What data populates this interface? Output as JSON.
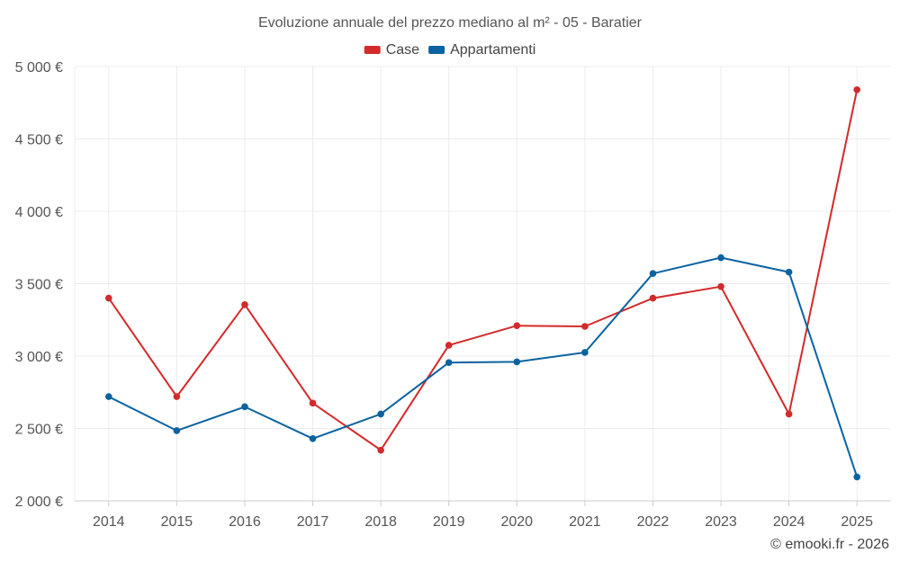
{
  "chart_data": {
    "type": "line",
    "title": "Evoluzione annuale del prezzo mediano al m² - 05 - Baratier",
    "categories": [
      "2014",
      "2015",
      "2016",
      "2017",
      "2018",
      "2019",
      "2020",
      "2021",
      "2022",
      "2023",
      "2024",
      "2025"
    ],
    "series": [
      {
        "name": "Case",
        "color": "#d32a2a",
        "values": [
          3400,
          2720,
          3355,
          2675,
          2350,
          3075,
          3210,
          3205,
          3400,
          3480,
          2600,
          4840
        ]
      },
      {
        "name": "Appartamenti",
        "color": "#0a63a0",
        "values": [
          2720,
          2485,
          2650,
          2430,
          2600,
          2955,
          2960,
          3025,
          3570,
          3680,
          3580,
          2165
        ]
      }
    ],
    "ylim": [
      2000,
      5000
    ],
    "yticks": [
      2000,
      2500,
      3000,
      3500,
      4000,
      4500,
      5000
    ],
    "ytick_labels": [
      "2 000 €",
      "2 500 €",
      "3 000 €",
      "3 500 €",
      "4 000 €",
      "4 500 €",
      "5 000 €"
    ],
    "xlabel": "",
    "ylabel": "",
    "legend_position": "top-center",
    "grid": true
  },
  "credit": "© emooki.fr - 2026"
}
